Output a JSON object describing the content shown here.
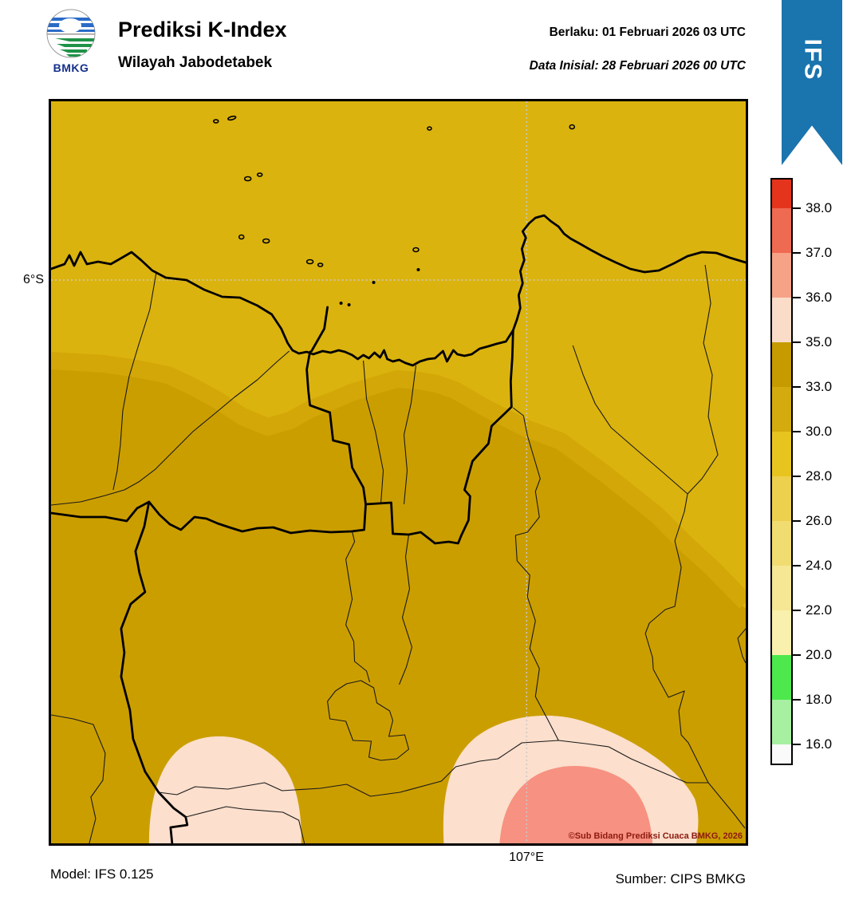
{
  "header": {
    "logo_text": "BMKG",
    "title": "Prediksi K-Index",
    "subtitle": "Wilayah Jabodetabek",
    "valid_line": "Berlaku:  01 Februari 2026 03 UTC",
    "init_line": "Data Inisial:  28 Februari 2026 00 UTC",
    "ribbon_text": "IFS",
    "ribbon_color": "#1a74ad"
  },
  "map": {
    "lat_label": "6°S",
    "lon_label": "107°E",
    "copyright": "©Sub Bidang Prediksi Cuaca BMKG, 2026",
    "region_colors": {
      "light": "#dbb30e",
      "medium": "#d3a707",
      "dark": "#cb9e00",
      "pale_pink": "#fcdfcc",
      "salmon": "#f79181"
    }
  },
  "footer": {
    "model": "Model: IFS 0.125",
    "source": "Sumber: CIPS BMKG"
  },
  "colorbar": {
    "segments": [
      {
        "color": "#e5341c",
        "tick": "38.0"
      },
      {
        "color": "#ee6a51",
        "tick": "37.0"
      },
      {
        "color": "#f5a287",
        "tick": "36.0"
      },
      {
        "color": "#fbdcc9",
        "tick": "35.0"
      },
      {
        "color": "#c59b00",
        "tick": "33.0"
      },
      {
        "color": "#d4ab0e",
        "tick": "30.0"
      },
      {
        "color": "#e8c51e",
        "tick": "28.0"
      },
      {
        "color": "#edd04e",
        "tick": "26.0"
      },
      {
        "color": "#f1dc72",
        "tick": "24.0"
      },
      {
        "color": "#f6e795",
        "tick": "22.0"
      },
      {
        "color": "#faf0ad",
        "tick": "20.0"
      },
      {
        "color": "#4ce84c",
        "tick": "18.0"
      },
      {
        "color": "#a7f0a2",
        "tick": "16.0"
      },
      {
        "color": "#fafafa",
        "tick": null
      }
    ]
  }
}
